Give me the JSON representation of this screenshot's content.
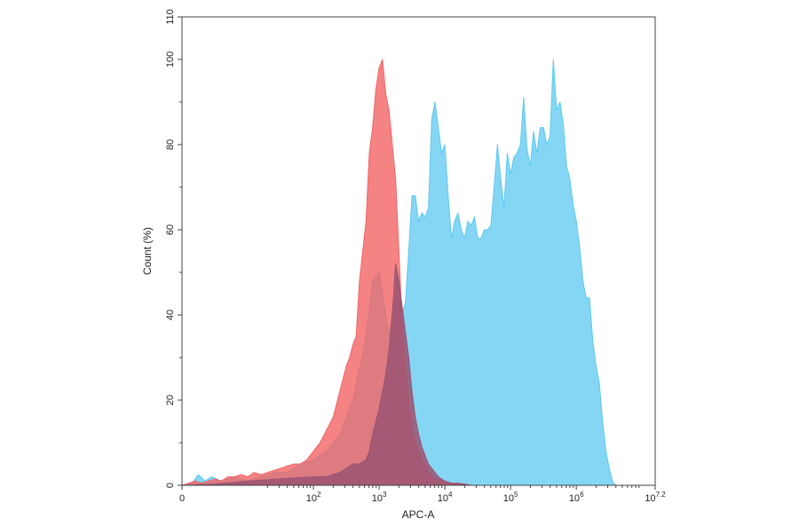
{
  "chart_data": {
    "type": "area",
    "title": "",
    "xlabel": "APC-A",
    "ylabel": "Count (%)",
    "x_scale": "log10",
    "xlim": [
      0,
      7.2
    ],
    "ylim": [
      0,
      110
    ],
    "grid": false,
    "legend": "none",
    "xticks": [
      {
        "value": 0,
        "label": "0"
      },
      {
        "value": 2,
        "label": "10",
        "sup": "2"
      },
      {
        "value": 3,
        "label": "10",
        "sup": "3"
      },
      {
        "value": 4,
        "label": "10",
        "sup": "4"
      },
      {
        "value": 5,
        "label": "10",
        "sup": "5"
      },
      {
        "value": 6,
        "label": "10",
        "sup": "6"
      },
      {
        "value": 7.2,
        "label": "10",
        "sup": "7.2"
      }
    ],
    "yticks": [
      0,
      20,
      40,
      60,
      80,
      100,
      110
    ],
    "series": [
      {
        "color": "#5cc8f0",
        "fill_opacity": 0.75,
        "x": [
          0,
          0.15,
          0.25,
          0.35,
          0.45,
          0.6,
          0.8,
          1.0,
          1.2,
          1.4,
          1.6,
          1.8,
          2.0,
          2.2,
          2.4,
          2.6,
          2.8,
          2.9,
          3.0,
          3.05,
          3.1,
          3.15,
          3.2,
          3.25,
          3.3,
          3.35,
          3.4,
          3.45,
          3.5,
          3.55,
          3.6,
          3.65,
          3.7,
          3.75,
          3.8,
          3.85,
          3.9,
          3.95,
          4.0,
          4.05,
          4.1,
          4.15,
          4.2,
          4.25,
          4.3,
          4.35,
          4.4,
          4.45,
          4.5,
          4.55,
          4.6,
          4.65,
          4.7,
          4.75,
          4.8,
          4.85,
          4.9,
          4.95,
          5.0,
          5.05,
          5.1,
          5.15,
          5.2,
          5.25,
          5.3,
          5.35,
          5.4,
          5.45,
          5.5,
          5.55,
          5.6,
          5.65,
          5.7,
          5.75,
          5.8,
          5.85,
          5.9,
          5.95,
          6.0,
          6.05,
          6.1,
          6.15,
          6.2,
          6.25,
          6.3,
          6.35,
          6.4,
          6.45,
          6.5,
          6.55,
          6.6,
          6.65,
          6.7,
          6.75,
          6.8,
          6.85,
          6.9
        ],
        "values": [
          0,
          0.5,
          2.5,
          1,
          2,
          1,
          2,
          1,
          2,
          3,
          3,
          5,
          6,
          8,
          12,
          20,
          35,
          48,
          50,
          45,
          40,
          35,
          41,
          45,
          48,
          40,
          43,
          55,
          68,
          68,
          62,
          64,
          63,
          65,
          86,
          90,
          84,
          78,
          80,
          68,
          58,
          62,
          64,
          60,
          58,
          62,
          61,
          63,
          58,
          58,
          60,
          60,
          61,
          70,
          80,
          72,
          65,
          78,
          73,
          77,
          78,
          80,
          91,
          79,
          75,
          83,
          78,
          84,
          84,
          80,
          82,
          100,
          88,
          90,
          85,
          75,
          72,
          66,
          62,
          56,
          48,
          44,
          44,
          34,
          28,
          24,
          15,
          8,
          4,
          1,
          0,
          0,
          0,
          0,
          0,
          0,
          0
        ]
      },
      {
        "color": "#f26464",
        "fill_opacity": 0.8,
        "x": [
          0,
          0.1,
          0.2,
          0.3,
          0.4,
          0.5,
          0.6,
          0.7,
          0.8,
          0.9,
          1.0,
          1.1,
          1.2,
          1.3,
          1.4,
          1.5,
          1.6,
          1.7,
          1.8,
          1.9,
          2.0,
          2.1,
          2.2,
          2.3,
          2.4,
          2.5,
          2.55,
          2.6,
          2.65,
          2.7,
          2.75,
          2.8,
          2.85,
          2.9,
          2.95,
          3.0,
          3.05,
          3.1,
          3.15,
          3.2,
          3.25,
          3.3,
          3.35,
          3.4,
          3.45,
          3.5,
          3.55,
          3.6,
          3.65,
          3.7,
          3.75,
          3.8,
          3.85,
          3.9,
          3.95,
          4.0,
          4.1,
          4.2,
          4.3,
          4.4
        ],
        "values": [
          0,
          0.5,
          1,
          0.5,
          1,
          1.5,
          1,
          2,
          2,
          2.5,
          2,
          3,
          2.5,
          3,
          3.5,
          4,
          4.5,
          5,
          5,
          6,
          8,
          10,
          13,
          16,
          22,
          28,
          30,
          33,
          35,
          48,
          55,
          62,
          78,
          84,
          93,
          98,
          100,
          92,
          88,
          80,
          72,
          55,
          38,
          28,
          20,
          14,
          10,
          8,
          6,
          5,
          3,
          2,
          1.5,
          1,
          1,
          0.5,
          0.5,
          0.5,
          0.3,
          0
        ]
      },
      {
        "color": "#9b5472",
        "fill_opacity": 0.85,
        "x": [
          0,
          0.5,
          1.0,
          1.5,
          2.0,
          2.2,
          2.4,
          2.5,
          2.6,
          2.7,
          2.8,
          2.85,
          2.9,
          2.95,
          3.0,
          3.05,
          3.1,
          3.15,
          3.2,
          3.25,
          3.3,
          3.35,
          3.4,
          3.45,
          3.5,
          3.55,
          3.6,
          3.65,
          3.7,
          3.75,
          3.8,
          3.85,
          3.9,
          3.95,
          4.0,
          4.1,
          4.2,
          4.3,
          4.4
        ],
        "values": [
          0,
          0.3,
          1,
          1.5,
          2,
          2,
          3,
          4,
          5,
          5,
          6,
          8,
          12,
          15,
          18,
          22,
          26,
          32,
          40,
          52,
          48,
          42,
          36,
          30,
          22,
          16,
          12,
          9,
          7,
          5,
          4,
          3,
          2,
          1.5,
          1,
          0.5,
          0.5,
          0.3,
          0
        ]
      }
    ]
  }
}
